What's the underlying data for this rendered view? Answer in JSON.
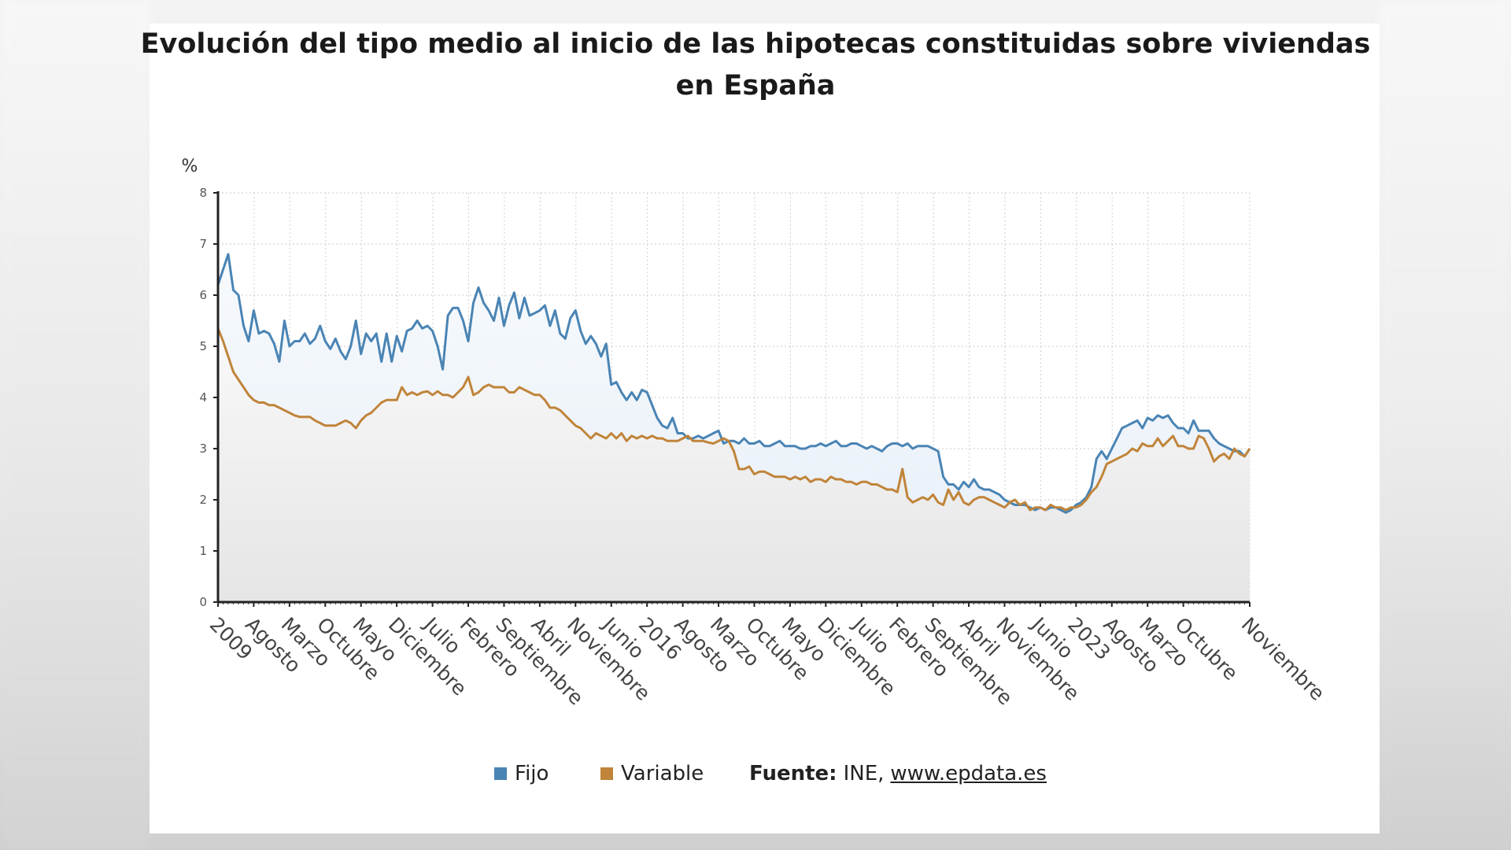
{
  "title_line1": "Evolución del tipo medio al inicio de las hipotecas constituidas sobre viviendas",
  "title_line2": "en España",
  "legend": {
    "fijo": "Fijo",
    "variable": "Variable",
    "source_label": "Fuente:",
    "source_text": "INE,",
    "source_link": "www.epdata.es"
  },
  "colors": {
    "fijo": "#4a84b4",
    "variable": "#c0843a"
  },
  "chart_data": {
    "type": "area",
    "title": "Evolución del tipo medio al inicio de las hipotecas constituidas sobre viviendas en España",
    "ylabel": "%",
    "xlabel": "",
    "ylim": [
      0,
      8
    ],
    "yticks": [
      0,
      1,
      2,
      3,
      4,
      5,
      6,
      7,
      8
    ],
    "grid": true,
    "legend_position": "bottom",
    "x_start": "2009-01",
    "x_end": "2025-11",
    "x_frequency": "monthly",
    "x_tick_labels": [
      "2009",
      "Agosto",
      "Marzo",
      "Octubre",
      "Mayo",
      "Diciembre",
      "Julio",
      "Febrero",
      "Septiembre",
      "Abril",
      "Noviembre",
      "Junio",
      "2016",
      "Agosto",
      "Marzo",
      "Octubre",
      "Mayo",
      "Diciembre",
      "Julio",
      "Febrero",
      "Septiembre",
      "Abril",
      "Noviembre",
      "Junio",
      "2023",
      "Agosto",
      "Marzo",
      "Octubre",
      "Noviembre"
    ],
    "series": [
      {
        "name": "Fijo",
        "values": [
          6.2,
          6.5,
          6.8,
          6.1,
          6.0,
          5.4,
          5.1,
          5.7,
          5.25,
          5.3,
          5.25,
          5.05,
          4.7,
          5.5,
          5.0,
          5.1,
          5.1,
          5.25,
          5.05,
          5.15,
          5.4,
          5.1,
          4.95,
          5.15,
          4.9,
          4.75,
          5.0,
          5.5,
          4.85,
          5.25,
          5.1,
          5.25,
          4.7,
          5.25,
          4.7,
          5.2,
          4.9,
          5.3,
          5.35,
          5.5,
          5.35,
          5.4,
          5.3,
          5.0,
          4.55,
          5.6,
          5.75,
          5.75,
          5.5,
          5.1,
          5.85,
          6.15,
          5.85,
          5.7,
          5.5,
          5.95,
          5.4,
          5.8,
          6.05,
          5.55,
          5.95,
          5.6,
          5.65,
          5.7,
          5.8,
          5.4,
          5.7,
          5.25,
          5.15,
          5.55,
          5.7,
          5.3,
          5.05,
          5.2,
          5.05,
          4.8,
          5.05,
          4.25,
          4.3,
          4.1,
          3.95,
          4.1,
          3.95,
          4.15,
          4.1,
          3.85,
          3.6,
          3.45,
          3.4,
          3.6,
          3.3,
          3.3,
          3.2,
          3.2,
          3.25,
          3.2,
          3.25,
          3.3,
          3.35,
          3.1,
          3.15,
          3.15,
          3.1,
          3.2,
          3.1,
          3.1,
          3.15,
          3.05,
          3.05,
          3.1,
          3.15,
          3.05,
          3.05,
          3.05,
          3.0,
          3.0,
          3.05,
          3.05,
          3.1,
          3.05,
          3.1,
          3.15,
          3.05,
          3.05,
          3.1,
          3.1,
          3.05,
          3.0,
          3.05,
          3.0,
          2.95,
          3.05,
          3.1,
          3.1,
          3.05,
          3.1,
          3.0,
          3.05,
          3.05,
          3.05,
          3.0,
          2.95,
          2.45,
          2.3,
          2.3,
          2.2,
          2.35,
          2.25,
          2.4,
          2.25,
          2.2,
          2.2,
          2.15,
          2.1,
          2.0,
          1.95,
          1.9,
          1.9,
          1.9,
          1.85,
          1.8,
          1.85,
          1.8,
          1.85,
          1.85,
          1.8,
          1.75,
          1.8,
          1.9,
          1.95,
          2.05,
          2.25,
          2.8,
          2.95,
          2.8,
          3.0,
          3.2,
          3.4,
          3.45,
          3.5,
          3.55,
          3.4,
          3.6,
          3.55,
          3.65,
          3.6,
          3.65,
          3.5,
          3.4,
          3.4,
          3.3,
          3.55,
          3.35,
          3.35,
          3.35,
          3.2,
          3.1,
          3.05,
          3.0,
          2.95,
          2.95,
          2.85,
          3.0
        ]
      },
      {
        "name": "Variable",
        "values": [
          5.35,
          5.1,
          4.8,
          4.5,
          4.35,
          4.2,
          4.05,
          3.95,
          3.9,
          3.9,
          3.85,
          3.85,
          3.8,
          3.75,
          3.7,
          3.65,
          3.62,
          3.62,
          3.62,
          3.55,
          3.5,
          3.45,
          3.45,
          3.45,
          3.5,
          3.55,
          3.5,
          3.4,
          3.55,
          3.65,
          3.7,
          3.8,
          3.9,
          3.95,
          3.95,
          3.95,
          4.2,
          4.05,
          4.1,
          4.05,
          4.1,
          4.12,
          4.05,
          4.12,
          4.05,
          4.05,
          4.0,
          4.1,
          4.2,
          4.4,
          4.05,
          4.1,
          4.2,
          4.25,
          4.2,
          4.2,
          4.2,
          4.1,
          4.1,
          4.2,
          4.15,
          4.1,
          4.05,
          4.05,
          3.95,
          3.8,
          3.8,
          3.75,
          3.65,
          3.55,
          3.45,
          3.4,
          3.3,
          3.2,
          3.3,
          3.25,
          3.2,
          3.3,
          3.2,
          3.3,
          3.15,
          3.25,
          3.2,
          3.25,
          3.2,
          3.25,
          3.2,
          3.2,
          3.15,
          3.15,
          3.15,
          3.2,
          3.25,
          3.15,
          3.15,
          3.15,
          3.12,
          3.1,
          3.15,
          3.2,
          3.15,
          2.95,
          2.6,
          2.6,
          2.65,
          2.5,
          2.55,
          2.55,
          2.5,
          2.45,
          2.45,
          2.45,
          2.4,
          2.45,
          2.4,
          2.45,
          2.35,
          2.4,
          2.4,
          2.35,
          2.45,
          2.4,
          2.4,
          2.35,
          2.35,
          2.3,
          2.35,
          2.35,
          2.3,
          2.3,
          2.25,
          2.2,
          2.2,
          2.15,
          2.6,
          2.05,
          1.95,
          2.0,
          2.05,
          2.0,
          2.1,
          1.95,
          1.9,
          2.2,
          2.0,
          2.15,
          1.95,
          1.9,
          2.0,
          2.05,
          2.05,
          2.0,
          1.95,
          1.9,
          1.85,
          1.95,
          2.0,
          1.9,
          1.95,
          1.8,
          1.85,
          1.85,
          1.8,
          1.9,
          1.85,
          1.85,
          1.8,
          1.85,
          1.85,
          1.9,
          2.0,
          2.15,
          2.25,
          2.45,
          2.7,
          2.75,
          2.8,
          2.85,
          2.9,
          3.0,
          2.95,
          3.1,
          3.05,
          3.05,
          3.2,
          3.05,
          3.15,
          3.25,
          3.05,
          3.05,
          3.0,
          3.0,
          3.25,
          3.2,
          3.0,
          2.75,
          2.85,
          2.9,
          2.8,
          3.0,
          2.9,
          2.85,
          3.0
        ]
      }
    ]
  }
}
